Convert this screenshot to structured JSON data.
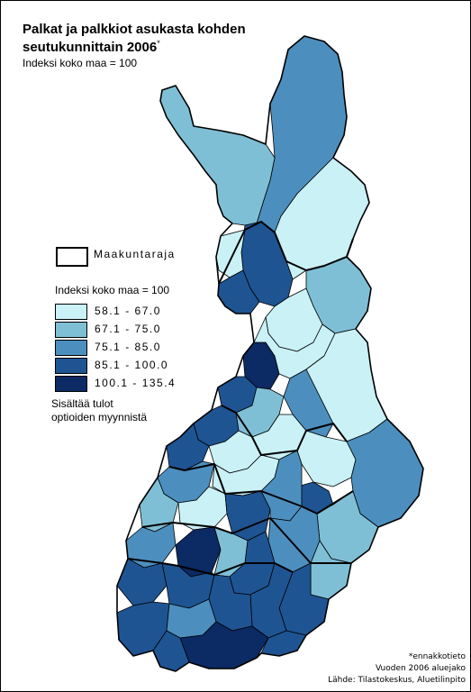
{
  "title_line1": "Palkat ja palkkiot asukasta kohden",
  "title_line2": "seutukunnittain 2006",
  "title_mark": "*",
  "subtitle": "Indeksi koko maa = 100",
  "legend": {
    "boundary_label": "Maakuntaraja",
    "title": "Indeksi koko maa = 100",
    "classes": [
      {
        "label": "58.1 - 67.0",
        "color": "#c9f1f6"
      },
      {
        "label": "67.1 - 75.0",
        "color": "#7fbfd6"
      },
      {
        "label": "75.1 - 85.0",
        "color": "#4c8fbf"
      },
      {
        "label": "85.1 - 100.0",
        "color": "#1f5493"
      },
      {
        "label": "100.1 - 135.4",
        "color": "#0c2a63"
      }
    ],
    "note_line1": "Sisältää tulot",
    "note_line2": "optioiden myynnistä"
  },
  "footer": {
    "line1": "*ennakkotieto",
    "line2": "Vuoden 2006 aluejako",
    "line3": "Lähde: Tilastokeskus, Aluetilinpito"
  },
  "chart_data": {
    "type": "choropleth",
    "area": "Finland",
    "unit": "index, whole country = 100",
    "classes": [
      "58.1 - 67.0",
      "67.1 - 75.0",
      "75.1 - 85.0",
      "85.1 - 100.0",
      "100.1 - 135.4"
    ],
    "colors": [
      "#c9f1f6",
      "#7fbfd6",
      "#4c8fbf",
      "#1f5493",
      "#0c2a63"
    ]
  }
}
